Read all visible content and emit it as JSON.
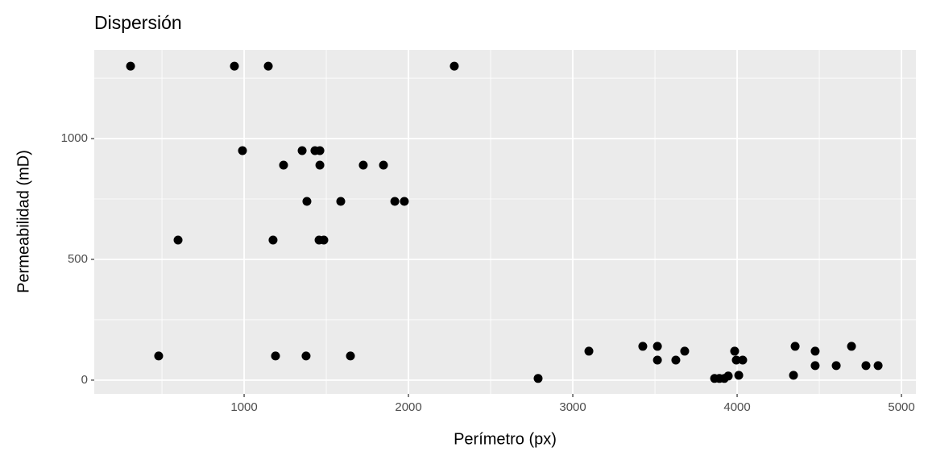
{
  "chart_data": {
    "type": "scatter",
    "title": "Dispersión",
    "x_label": "Perímetro (px)",
    "y_label": "Permeabilidad (mD)",
    "x": [
      309,
      941,
      1147,
      2279,
      990,
      1353,
      1431,
      1461,
      1240,
      1461,
      1725,
      1848,
      1382,
      1588,
      1917,
      1975,
      598,
      1176,
      1456,
      1485,
      480,
      1191,
      1377,
      1647,
      2789,
      3098,
      3426,
      3515,
      3515,
      3627,
      3681,
      3863,
      3892,
      3922,
      3946,
      3985,
      3995,
      4034,
      4010,
      4343,
      4353,
      4475,
      4475,
      4603,
      4696,
      4784,
      4858
    ],
    "y": [
      1300,
      1300,
      1300,
      1300,
      950,
      950,
      950,
      950,
      890,
      890,
      890,
      890,
      740,
      740,
      740,
      740,
      580,
      580,
      580,
      580,
      100,
      100,
      100,
      100,
      7,
      120,
      140,
      140,
      83,
      83,
      120,
      7,
      7,
      7,
      17,
      120,
      83,
      83,
      20,
      20,
      140,
      120,
      60,
      60,
      140,
      60,
      60
    ],
    "color": "#000000",
    "xlim": [
      88,
      5088
    ],
    "ylim": [
      -57,
      1367
    ],
    "xticks": [
      1000,
      2000,
      3000,
      4000,
      5000
    ],
    "yticks": [
      0,
      500,
      1000
    ],
    "grid": true
  }
}
